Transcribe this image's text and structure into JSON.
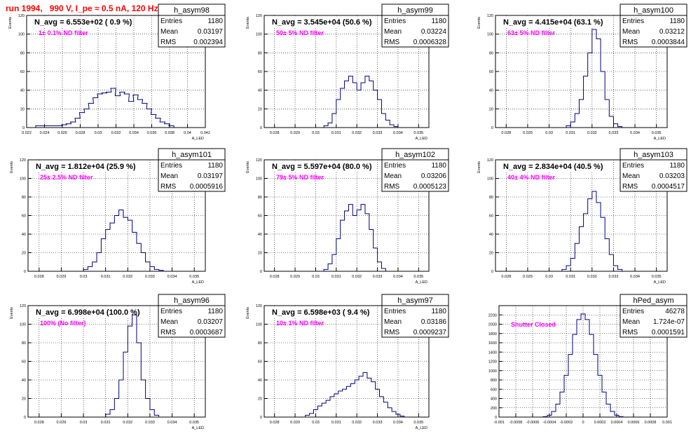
{
  "page": {
    "title": "run 1994,   990 V, I_pe ≈ 0.5 nA, 120 Hz"
  },
  "colors": {
    "title": "#ff0000",
    "histogram_line": "#00007a",
    "annotation": "#ff00ff",
    "axis": "#000000",
    "grid": "#000000"
  },
  "chart_data": [
    {
      "type": "histogram",
      "name": "h_asym98",
      "navg_label": "N_avg = 6.553e+02 ( 0.9 %)",
      "filter_label": "1± 0.1% ND filter",
      "stats": {
        "entries": "1180",
        "mean": "0.03197",
        "rms": "0.002394"
      },
      "xlabel": "A_LED",
      "ylabel": "Events",
      "xlim": [
        0.022,
        0.042
      ],
      "ylim": [
        0,
        120
      ],
      "xticks": [
        "0.022",
        "0.024",
        "0.026",
        "0.028",
        "0.03",
        "0.032",
        "0.034",
        "0.036",
        "0.038",
        "0.04",
        "0.042"
      ],
      "yticks": [
        "0",
        "20",
        "40",
        "60",
        "80",
        "100",
        "120"
      ],
      "x": [
        0.0233,
        0.0257,
        0.0262,
        0.0267,
        0.0272,
        0.0277,
        0.0282,
        0.0287,
        0.0292,
        0.0297,
        0.0302,
        0.0307,
        0.0312,
        0.0317,
        0.0322,
        0.0327,
        0.0332,
        0.0337,
        0.0342,
        0.0347,
        0.0352,
        0.0357,
        0.0362,
        0.0367,
        0.0372,
        0.0377,
        0.0382
      ],
      "y": [
        2,
        2,
        3,
        4,
        6,
        10,
        16,
        20,
        26,
        32,
        36,
        37,
        38,
        42,
        34,
        38,
        36,
        28,
        35,
        30,
        26,
        20,
        14,
        10,
        6,
        4,
        2
      ]
    },
    {
      "type": "histogram",
      "name": "h_asym99",
      "navg_label": "N_avg = 3.545e+04 (50.6 %)",
      "filter_label": "50± 5% ND filter",
      "stats": {
        "entries": "1180",
        "mean": "0.03224",
        "rms": "0.0006328"
      },
      "xlabel": "A_LED",
      "ylabel": "Events",
      "xlim": [
        0.0275,
        0.0355
      ],
      "ylim": [
        0,
        120
      ],
      "xticks": [
        "0.028",
        "0.029",
        "0.03",
        "0.031",
        "0.032",
        "0.033",
        "0.034",
        "0.035"
      ],
      "yticks": [
        "0",
        "20",
        "40",
        "60",
        "80",
        "100",
        "120"
      ],
      "x": [
        0.0305,
        0.0307,
        0.0309,
        0.0311,
        0.0313,
        0.0315,
        0.0317,
        0.0319,
        0.0321,
        0.0323,
        0.0325,
        0.0327,
        0.0329,
        0.0331,
        0.0333,
        0.0335,
        0.0337,
        0.0339
      ],
      "y": [
        2,
        5,
        15,
        30,
        42,
        50,
        55,
        48,
        40,
        48,
        55,
        50,
        40,
        30,
        15,
        8,
        3,
        1
      ]
    },
    {
      "type": "histogram",
      "name": "h_asym100",
      "navg_label": "N_avg = 4.415e+04 (63.1 %)",
      "filter_label": "63± 5% ND filter",
      "stats": {
        "entries": "1180",
        "mean": "0.03212",
        "rms": "0.0003844"
      },
      "xlabel": "A_LED",
      "ylabel": "Events",
      "xlim": [
        0.0275,
        0.0355
      ],
      "ylim": [
        0,
        120
      ],
      "xticks": [
        "0.028",
        "0.029",
        "0.03",
        "0.031",
        "0.032",
        "0.033",
        "0.034",
        "0.035"
      ],
      "yticks": [
        "0",
        "20",
        "40",
        "60",
        "80",
        "100",
        "120"
      ],
      "x": [
        0.0309,
        0.0311,
        0.0313,
        0.0315,
        0.0317,
        0.0319,
        0.0321,
        0.0323,
        0.0325,
        0.0327,
        0.0329,
        0.0331,
        0.0333
      ],
      "y": [
        2,
        6,
        15,
        30,
        55,
        80,
        105,
        95,
        60,
        30,
        12,
        4,
        1
      ]
    },
    {
      "type": "histogram",
      "name": "h_asym101",
      "navg_label": "N_avg = 1.812e+04 (25.9 %)",
      "filter_label": "25± 2.5% ND filter",
      "stats": {
        "entries": "1180",
        "mean": "0.03197",
        "rms": "0.0005916"
      },
      "xlabel": "A_LED",
      "ylabel": "Events",
      "xlim": [
        0.0275,
        0.0355
      ],
      "ylim": [
        0,
        120
      ],
      "xticks": [
        "0.028",
        "0.029",
        "0.03",
        "0.031",
        "0.032",
        "0.033",
        "0.034",
        "0.035"
      ],
      "yticks": [
        "0",
        "20",
        "40",
        "60",
        "80",
        "100",
        "120"
      ],
      "x": [
        0.0301,
        0.0303,
        0.0305,
        0.0307,
        0.0309,
        0.0311,
        0.0313,
        0.0315,
        0.0317,
        0.0319,
        0.0321,
        0.0323,
        0.0325,
        0.0327,
        0.0329,
        0.0331,
        0.0333,
        0.0335
      ],
      "y": [
        2,
        5,
        10,
        20,
        35,
        45,
        52,
        60,
        66,
        58,
        55,
        42,
        30,
        20,
        10,
        5,
        2,
        1
      ]
    },
    {
      "type": "histogram",
      "name": "h_asym102",
      "navg_label": "N_avg = 5.597e+04 (80.0 %)",
      "filter_label": "79± 5% ND filter",
      "stats": {
        "entries": "1180",
        "mean": "0.03206",
        "rms": "0.0005123"
      },
      "xlabel": "A_LED",
      "ylabel": "Events",
      "xlim": [
        0.0275,
        0.0355
      ],
      "ylim": [
        0,
        120
      ],
      "xticks": [
        "0.028",
        "0.029",
        "0.03",
        "0.031",
        "0.032",
        "0.033",
        "0.034",
        "0.035"
      ],
      "yticks": [
        "0",
        "20",
        "40",
        "60",
        "80",
        "100",
        "120"
      ],
      "x": [
        0.0305,
        0.0307,
        0.0309,
        0.0311,
        0.0313,
        0.0315,
        0.0317,
        0.0319,
        0.0321,
        0.0323,
        0.0325,
        0.0327,
        0.0329,
        0.0331,
        0.0333
      ],
      "y": [
        2,
        8,
        18,
        35,
        55,
        65,
        72,
        60,
        66,
        72,
        62,
        45,
        25,
        10,
        3
      ]
    },
    {
      "type": "histogram",
      "name": "h_asym103",
      "navg_label": "N_avg = 2.834e+04 (40.5 %)",
      "filter_label": "40± 4% ND filter",
      "stats": {
        "entries": "1180",
        "mean": "0.03203",
        "rms": "0.0004517"
      },
      "xlabel": "A_LED",
      "ylabel": "Events",
      "xlim": [
        0.0275,
        0.0355
      ],
      "ylim": [
        0,
        120
      ],
      "xticks": [
        "0.028",
        "0.029",
        "0.03",
        "0.031",
        "0.032",
        "0.033",
        "0.034",
        "0.035"
      ],
      "yticks": [
        "0",
        "20",
        "40",
        "60",
        "80",
        "100",
        "120"
      ],
      "x": [
        0.0307,
        0.0309,
        0.0311,
        0.0313,
        0.0315,
        0.0317,
        0.0319,
        0.0321,
        0.0323,
        0.0325,
        0.0327,
        0.0329,
        0.0331,
        0.0333
      ],
      "y": [
        2,
        6,
        14,
        30,
        48,
        62,
        78,
        86,
        74,
        58,
        35,
        18,
        6,
        2
      ]
    },
    {
      "type": "histogram",
      "name": "h_asym96",
      "navg_label": "N_avg = 6.998e+04 (100.0 %)",
      "filter_label": "100% (No filter)",
      "stats": {
        "entries": "1180",
        "mean": "0.03207",
        "rms": "0.0003687"
      },
      "xlabel": "A_LED",
      "ylabel": "Events",
      "xlim": [
        0.0275,
        0.0355
      ],
      "ylim": [
        0,
        120
      ],
      "xticks": [
        "0.028",
        "0.029",
        "0.03",
        "0.031",
        "0.032",
        "0.033",
        "0.034",
        "0.035"
      ],
      "yticks": [
        "0",
        "20",
        "40",
        "60",
        "80",
        "100",
        "120"
      ],
      "x": [
        0.0311,
        0.0313,
        0.0315,
        0.0317,
        0.0319,
        0.0321,
        0.0323,
        0.0325,
        0.0327,
        0.0329,
        0.0331,
        0.0333
      ],
      "y": [
        3,
        8,
        20,
        40,
        70,
        98,
        110,
        80,
        40,
        20,
        8,
        2
      ]
    },
    {
      "type": "histogram",
      "name": "h_asym97",
      "navg_label": "N_avg = 6.598e+03 ( 9.4 %)",
      "filter_label": "10± 1% ND filter",
      "stats": {
        "entries": "1180",
        "mean": "0.03186",
        "rms": "0.0009237"
      },
      "xlabel": "A_LED",
      "ylabel": "Events",
      "xlim": [
        0.0275,
        0.0355
      ],
      "ylim": [
        0,
        120
      ],
      "xticks": [
        "0.028",
        "0.029",
        "0.03",
        "0.031",
        "0.032",
        "0.033",
        "0.034",
        "0.035"
      ],
      "yticks": [
        "0",
        "20",
        "40",
        "60",
        "80",
        "100",
        "120"
      ],
      "x": [
        0.0296,
        0.0298,
        0.03,
        0.0302,
        0.0304,
        0.0306,
        0.0308,
        0.031,
        0.0312,
        0.0314,
        0.0316,
        0.0318,
        0.032,
        0.0322,
        0.0324,
        0.0326,
        0.0328,
        0.033,
        0.0332,
        0.0334,
        0.0336,
        0.0338,
        0.034,
        0.0342
      ],
      "y": [
        2,
        4,
        8,
        12,
        15,
        18,
        22,
        25,
        28,
        30,
        33,
        36,
        40,
        44,
        48,
        42,
        38,
        30,
        22,
        16,
        10,
        6,
        3,
        1
      ]
    },
    {
      "type": "histogram",
      "name": "hPed_asym",
      "navg_label": "",
      "filter_label": "Shutter Closed",
      "stats": {
        "entries": "46278",
        "mean": "1.724e-07",
        "rms": "0.0001591"
      },
      "xlabel": "",
      "ylabel": "",
      "xlim": [
        -0.001,
        0.001
      ],
      "ylim": [
        0,
        2400
      ],
      "xticks": [
        "-0.001",
        "-0.0008",
        "-0.0006",
        "-0.0004",
        "-0.0002",
        "0",
        "0.0002",
        "0.0004",
        "0.0006",
        "0.0008",
        "0.001"
      ],
      "yticks": [
        "0",
        "200",
        "400",
        "600",
        "800",
        "1000",
        "1200",
        "1400",
        "1600",
        "1800",
        "2000",
        "2200"
      ],
      "x": [
        -0.00045,
        -0.0004,
        -0.00035,
        -0.0003,
        -0.00025,
        -0.0002,
        -0.00015,
        -0.0001,
        -5e-05,
        0,
        5e-05,
        0.0001,
        0.00015,
        0.0002,
        0.00025,
        0.0003,
        0.00035,
        0.0004,
        0.00045
      ],
      "y": [
        10,
        40,
        120,
        280,
        540,
        900,
        1350,
        1780,
        2100,
        2220,
        2100,
        1780,
        1350,
        900,
        540,
        280,
        120,
        40,
        10
      ]
    }
  ]
}
